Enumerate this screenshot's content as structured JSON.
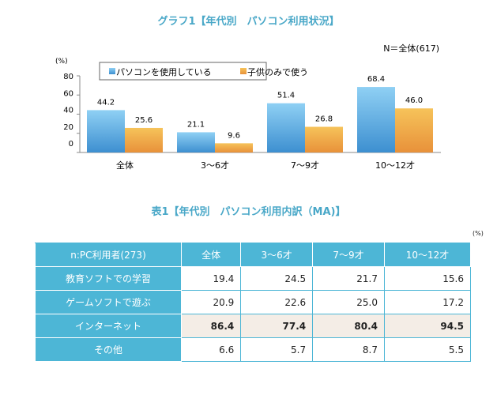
{
  "chart_data": {
    "type": "bar",
    "title": "グラフ1【年代別　パソコン利用状況】",
    "note": "N＝全体(617)",
    "ylabel": "(%)",
    "ylim": [
      0,
      80
    ],
    "yticks": [
      "80",
      "60",
      "40",
      "20",
      "0"
    ],
    "categories": [
      "全体",
      "3～6才",
      "7～9才",
      "10～12才"
    ],
    "legend_position": "top",
    "series": [
      {
        "name": "パソコンを使用している",
        "values": [
          44.2,
          21.1,
          51.4,
          68.4
        ],
        "color": "#4ea3dc"
      },
      {
        "name": "子供のみで使う",
        "values": [
          25.6,
          9.6,
          26.8,
          46.0
        ],
        "color": "#eeb24e"
      }
    ]
  },
  "table": {
    "title": "表1【年代別　パソコン利用内訳（MA)】",
    "unit": "(%)",
    "headers": [
      "n:PC利用者(273)",
      "全体",
      "3～6才",
      "7～9才",
      "10～12才"
    ],
    "rows": [
      {
        "label": "教育ソフトでの学習",
        "values": [
          "19.4",
          "24.5",
          "21.7",
          "15.6"
        ]
      },
      {
        "label": "ゲームソフトで遊ぶ",
        "values": [
          "20.9",
          "22.6",
          "25.0",
          "17.2"
        ]
      },
      {
        "label": "インターネット",
        "values": [
          "86.4",
          "77.4",
          "80.4",
          "94.5"
        ],
        "highlight": true
      },
      {
        "label": "その他",
        "values": [
          "6.6",
          "5.7",
          "8.7",
          "5.5"
        ]
      }
    ],
    "header_color": "#4db6d6",
    "highlight_color": "#f4ede6"
  }
}
